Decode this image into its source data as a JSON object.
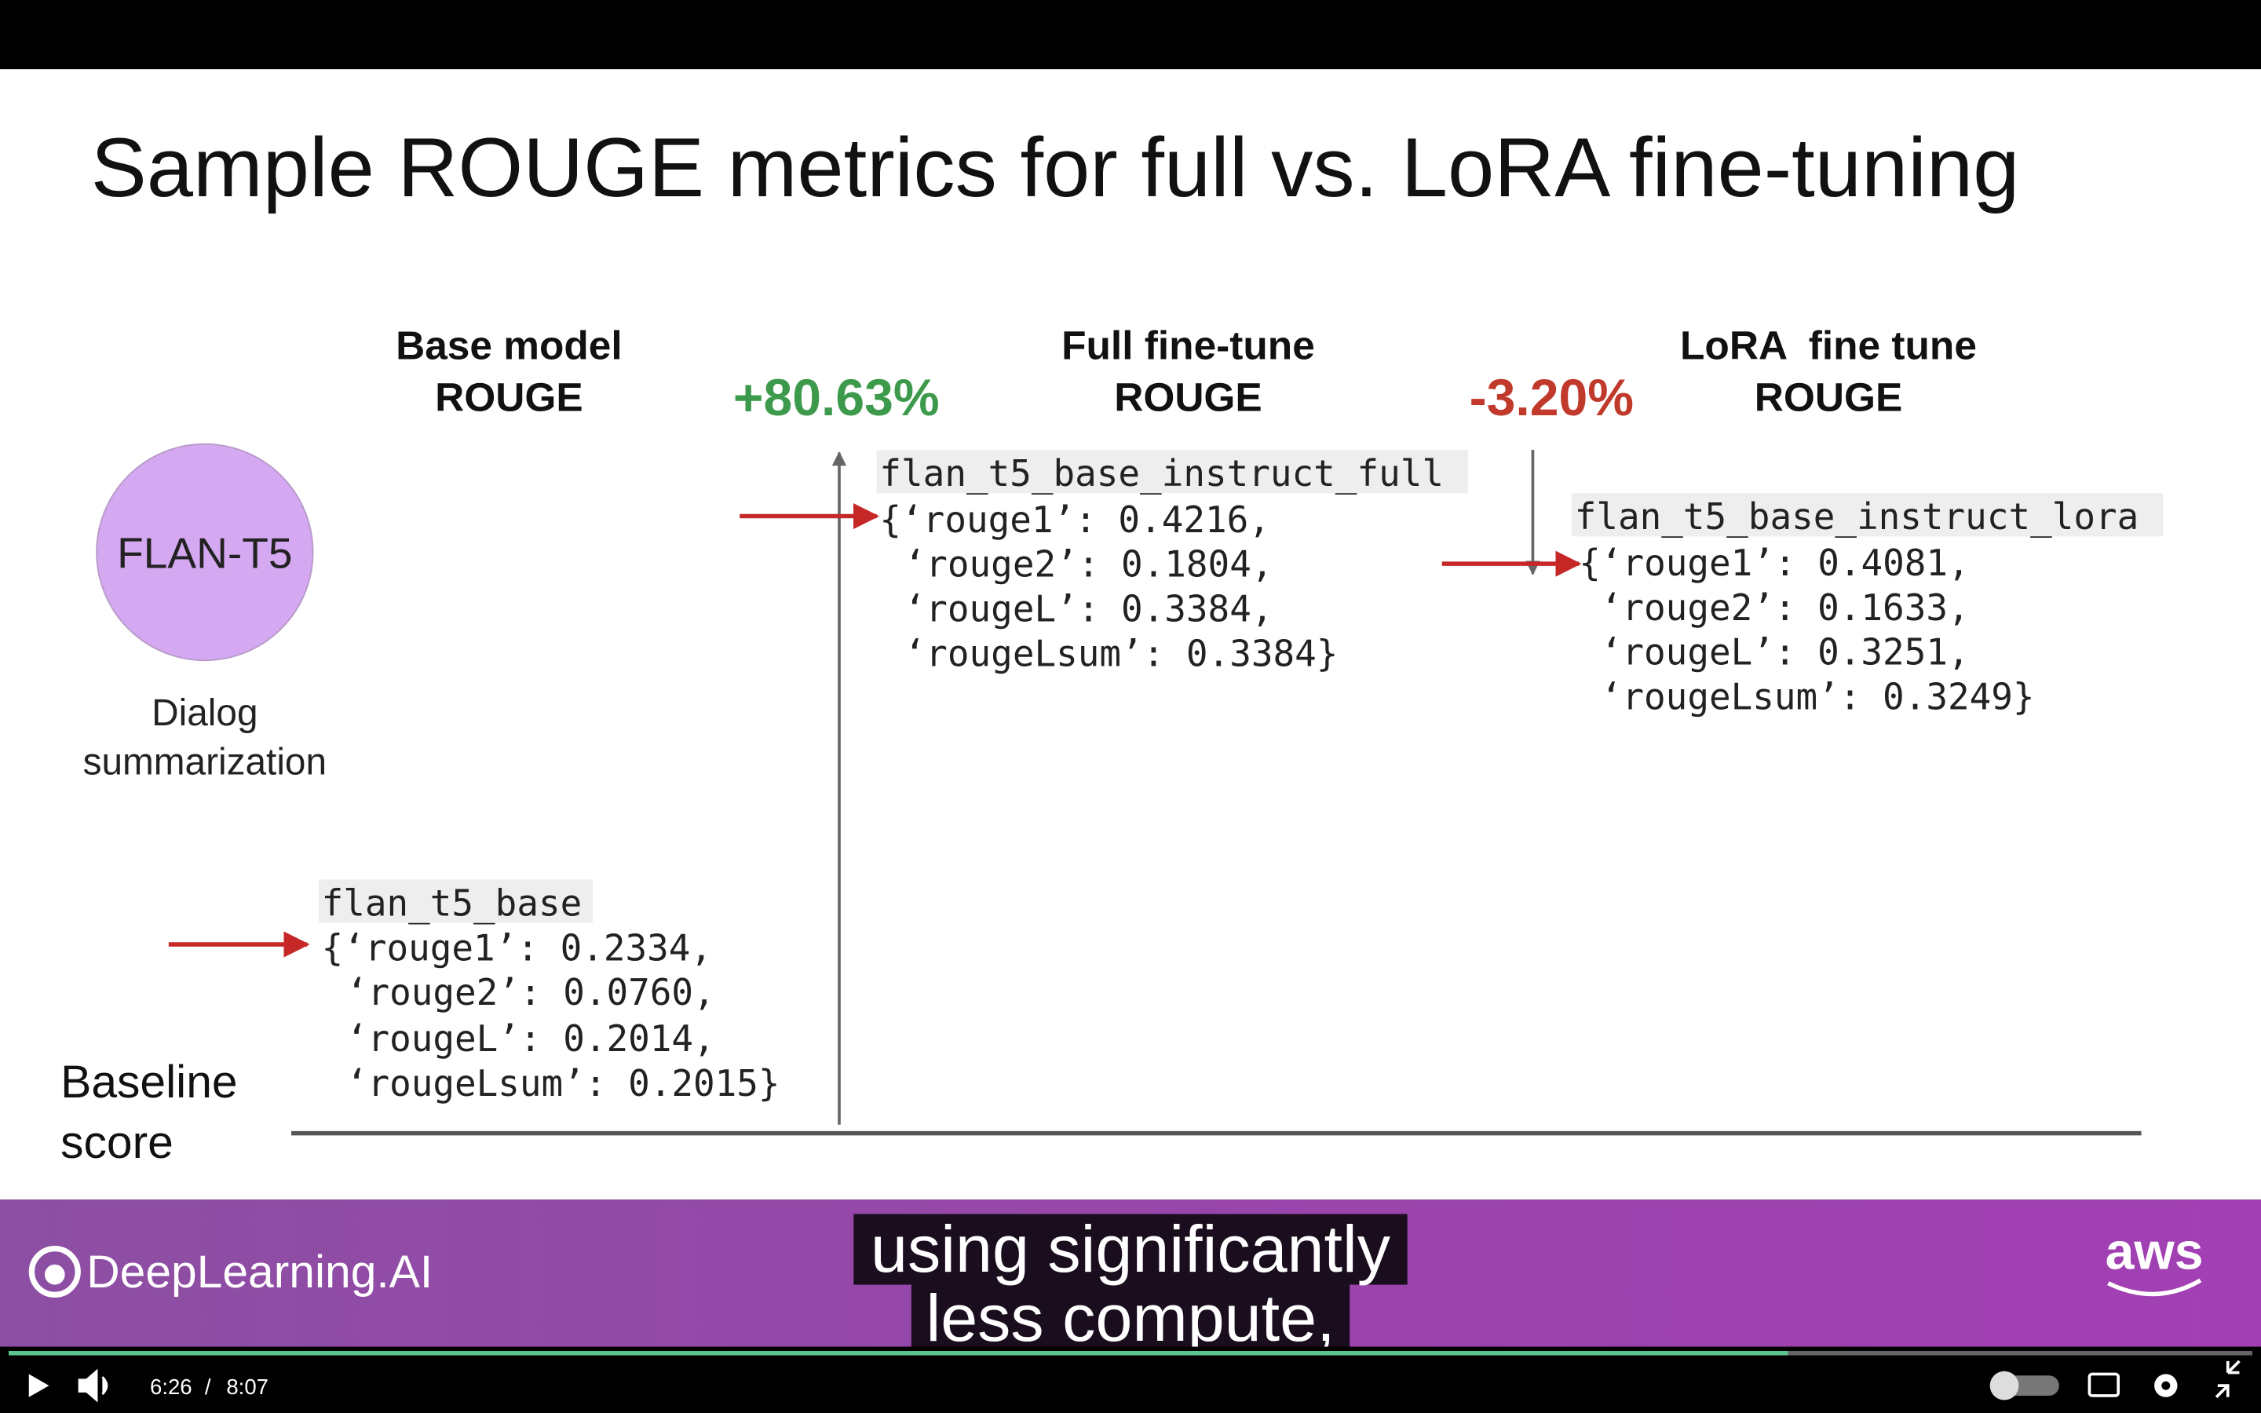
{
  "slide": {
    "title": "Sample ROUGE metrics for full vs. LoRA fine-tuning",
    "model": {
      "name": "FLAN-T5",
      "task_lines": [
        "Dialog",
        "summarization"
      ]
    },
    "baseline_label_lines": [
      "Baseline",
      "score"
    ],
    "columns": [
      {
        "heading_lines": [
          "Base model",
          "ROUGE"
        ]
      },
      {
        "heading_lines": [
          "Full fine-tune",
          "ROUGE"
        ]
      },
      {
        "heading_lines": [
          "LoRA  fine tune",
          "ROUGE"
        ]
      }
    ],
    "changes": [
      "+80.63%",
      "-3.20%"
    ],
    "results": [
      {
        "name": "flan_t5_base",
        "lines": [
          "{‘rouge1’: 0.2334,",
          "‘rouge2’: 0.0760,",
          "‘rougeL’: 0.2014,",
          "‘rougeLsum’: 0.2015}"
        ]
      },
      {
        "name": "flan_t5_base_instruct_full",
        "lines": [
          "{‘rouge1’: 0.4216,",
          "‘rouge2’: 0.1804,",
          "‘rougeL’: 0.3384,",
          "‘rougeLsum’: 0.3384}"
        ]
      },
      {
        "name": "flan_t5_base_instruct_lora",
        "lines": [
          "{‘rouge1’: 0.4081,",
          "‘rouge2’: 0.1633,",
          "‘rougeL’: 0.3251,",
          "‘rougeLsum’: 0.3249}"
        ]
      }
    ]
  },
  "branding": {
    "logo": "DeepLearning.AI",
    "partner": "aws"
  },
  "captions": [
    "using significantly",
    "less compute,"
  ],
  "player": {
    "current_time": "6:26",
    "separator": "/",
    "duration": "8:07"
  }
}
